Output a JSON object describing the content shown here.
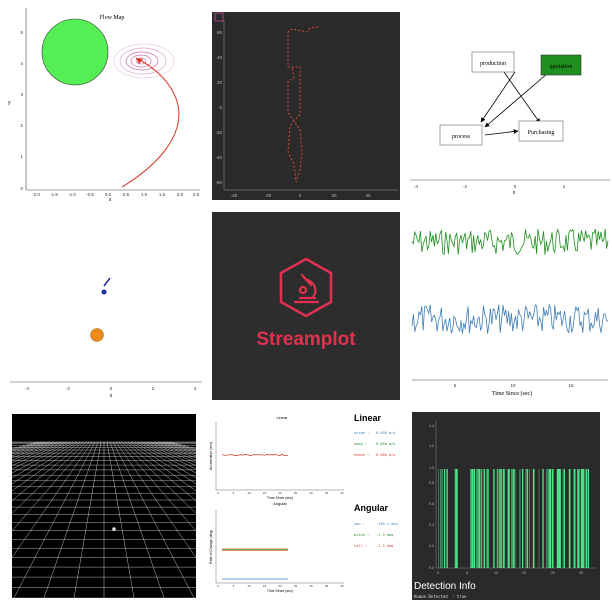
{
  "tiles": {
    "flow_map": {
      "title": "Flow Map",
      "xlabel": "x",
      "ylabel": "y",
      "xticks": [
        "-2.0",
        "-1.5",
        "-1.0",
        "-0.5",
        "0.0",
        "0.5",
        "1.0",
        "1.5",
        "2.0",
        "2.5"
      ],
      "yticks": [
        "0",
        "1",
        "2",
        "3",
        "4",
        "5"
      ],
      "colors": {
        "circle": "#55ef55",
        "path": "#d43a2a",
        "rings": "#c86ab0"
      }
    },
    "dark_trajectory": {
      "xticks": [
        "-40",
        "-20",
        "0",
        "20",
        "40"
      ],
      "yticks": [
        "-60",
        "-40",
        "-20",
        "0",
        "20",
        "40",
        "60"
      ],
      "colors": {
        "bg": "#2a2a2a",
        "path": "#d9473c"
      }
    },
    "flow_diagram": {
      "nodes": {
        "production": "production",
        "quotation": "quotation",
        "process": "process",
        "purchasing": "Purchasing"
      },
      "xticks": [
        "-4",
        "-2",
        "0",
        "2"
      ],
      "xlabel": "x",
      "colors": {
        "quotation_fill": "#1f8f1f"
      }
    },
    "object_view": {
      "xticks": [
        "-4",
        "-2",
        "0",
        "2",
        "4"
      ],
      "xlabel": "x",
      "colors": {
        "marker": "#1f2b9c",
        "ball": "#f08a17"
      }
    },
    "streamplot_logo": {
      "title": "Streamplot",
      "icon": "microscope-hexagon-icon",
      "colors": {
        "bg": "#2d2d2d",
        "accent": "#e2314f"
      }
    },
    "time_signals": {
      "xlabel": "Time Since (sec)",
      "xticks": [
        "5",
        "10",
        "15"
      ],
      "colors": {
        "top": "#1f8f1f",
        "bottom": "#3f7fb8"
      }
    },
    "grid_3d": {
      "colors": {
        "bg": "#000000",
        "grid": "#e8e8e8"
      }
    },
    "linear_angular": {
      "linear_chart_title": "Linear",
      "linear_ylabel": "Acceleration (m/s)",
      "linear_xlabel": "Time Since (sec)",
      "angular_chart_title": "Angular",
      "angular_ylabel": "Rate of Change (deg)",
      "angular_xlabel": "Time Since (sec)",
      "xticks": [
        "0",
        "5",
        "10",
        "15",
        "20",
        "25",
        "30",
        "35",
        "40"
      ],
      "linear": {
        "heading": "Linear",
        "rows": [
          {
            "label": "surge :",
            "value": "0.050 m/s",
            "color": "#3c7fb8"
          },
          {
            "label": "sway  :",
            "value": "0.050 m/s",
            "color": "#1f8f1f"
          },
          {
            "label": "heave :",
            "value": "0.050 m/s",
            "color": "#d43a2a"
          }
        ]
      },
      "angular": {
        "heading": "Angular",
        "rows": [
          {
            "label": "yaw   :",
            "value": "-156.1 deg",
            "color": "#3c7fb8"
          },
          {
            "label": "pitch :",
            "value": "-1.3 deg",
            "color": "#1f8f1f"
          },
          {
            "label": "roll  :",
            "value": "-1.3 deg",
            "color": "#d43a2a"
          }
        ]
      }
    },
    "detection": {
      "title": "Detection Info",
      "status_label": "Human Detected",
      "status_value": ": true",
      "yticks": [
        "0.0",
        "0.2",
        "0.4",
        "0.6",
        "0.8",
        "1.0",
        "1.2",
        "1.4"
      ],
      "xticks": [
        "0",
        "5",
        "10",
        "15",
        "20",
        "25"
      ],
      "colors": {
        "bg": "#2a2a2a",
        "bars": "#4fe38a"
      }
    }
  }
}
